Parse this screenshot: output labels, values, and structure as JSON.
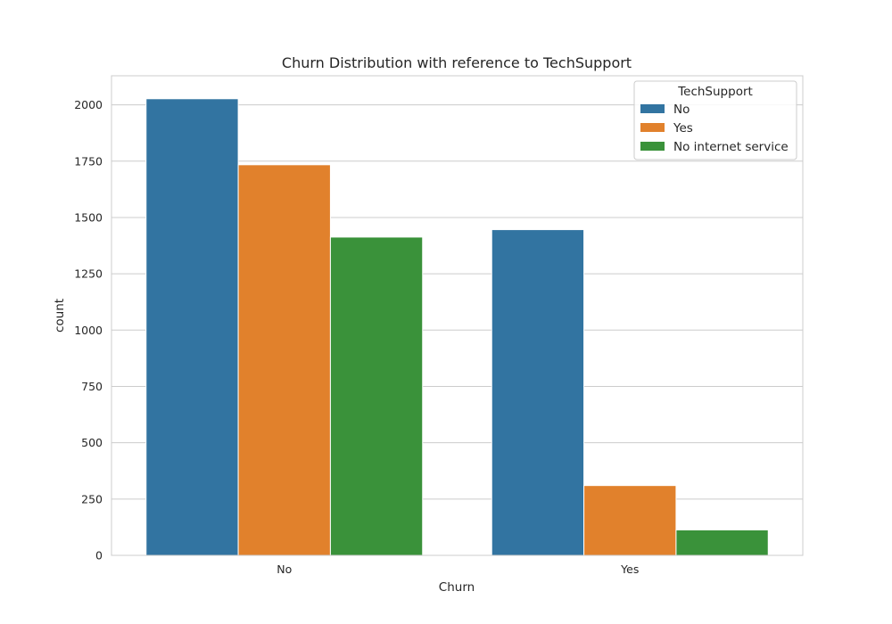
{
  "chart_data": {
    "type": "bar",
    "title": "Churn Distribution with reference to TechSupport",
    "xlabel": "Churn",
    "ylabel": "count",
    "categories": [
      "No",
      "Yes"
    ],
    "series": [
      {
        "name": "No",
        "values": [
          2027,
          1446
        ],
        "color": "#3274a1"
      },
      {
        "name": "Yes",
        "values": [
          1734,
          310
        ],
        "color": "#e1812c"
      },
      {
        "name": "No internet service",
        "values": [
          1413,
          113
        ],
        "color": "#3a923a"
      }
    ],
    "ylim": [
      0,
      2129
    ],
    "yticks": [
      0,
      250,
      500,
      750,
      1000,
      1250,
      1500,
      1750,
      2000
    ],
    "grid": true,
    "legend": {
      "title": "TechSupport",
      "position": "top-right"
    }
  }
}
